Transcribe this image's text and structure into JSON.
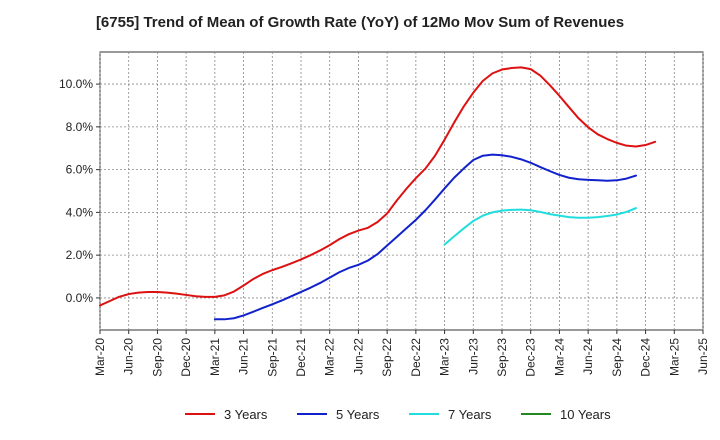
{
  "chart_data": {
    "type": "line",
    "title": "[6755]  Trend of Mean of Growth Rate (YoY) of 12Mo Mov Sum of Revenues",
    "xlabel": "",
    "ylabel": "",
    "ylim": [
      -1.5,
      11.5
    ],
    "y_ticks": [
      0,
      2,
      4,
      6,
      8,
      10
    ],
    "y_tick_labels": [
      "0.0%",
      "2.0%",
      "4.0%",
      "6.0%",
      "8.0%",
      "10.0%"
    ],
    "x_ticks": [
      "Mar-20",
      "Jun-20",
      "Sep-20",
      "Dec-20",
      "Mar-21",
      "Jun-21",
      "Sep-21",
      "Dec-21",
      "Mar-22",
      "Jun-22",
      "Sep-22",
      "Dec-22",
      "Mar-23",
      "Jun-23",
      "Sep-23",
      "Dec-23",
      "Mar-24",
      "Jun-24",
      "Sep-24",
      "Dec-24",
      "Mar-25",
      "Jun-25"
    ],
    "grid": true,
    "legend_position": "bottom",
    "series": [
      {
        "name": "3 Years",
        "color": "#dd1111",
        "start_index": 0,
        "values": [
          -0.35,
          -0.15,
          0.05,
          0.18,
          0.25,
          0.28,
          0.28,
          0.25,
          0.2,
          0.14,
          0.08,
          0.05,
          0.05,
          0.12,
          0.3,
          0.58,
          0.88,
          1.12,
          1.3,
          1.45,
          1.62,
          1.8,
          2.0,
          2.22,
          2.47,
          2.75,
          2.98,
          3.15,
          3.28,
          3.55,
          3.95,
          4.55,
          5.1,
          5.6,
          6.05,
          6.65,
          7.4,
          8.2,
          8.95,
          9.6,
          10.15,
          10.5,
          10.68,
          10.75,
          10.78,
          10.7,
          10.4,
          9.95,
          9.45,
          8.92,
          8.4,
          7.98,
          7.65,
          7.43,
          7.25,
          7.12,
          7.08,
          7.15,
          7.3
        ]
      },
      {
        "name": "5 Years",
        "color": "#1122cc",
        "start_index": 12,
        "values": [
          -1.0,
          -1.0,
          -0.95,
          -0.82,
          -0.65,
          -0.47,
          -0.3,
          -0.12,
          0.08,
          0.28,
          0.48,
          0.7,
          0.95,
          1.2,
          1.4,
          1.55,
          1.75,
          2.05,
          2.45,
          2.85,
          3.25,
          3.65,
          4.1,
          4.6,
          5.12,
          5.62,
          6.05,
          6.45,
          6.65,
          6.7,
          6.67,
          6.6,
          6.48,
          6.32,
          6.12,
          5.93,
          5.75,
          5.62,
          5.55,
          5.52,
          5.5,
          5.48,
          5.5,
          5.58,
          5.72
        ]
      },
      {
        "name": "7 Years",
        "color": "#22dddd",
        "start_index": 36,
        "values": [
          2.5,
          2.88,
          3.25,
          3.6,
          3.85,
          4.0,
          4.08,
          4.12,
          4.13,
          4.1,
          4.02,
          3.92,
          3.85,
          3.78,
          3.75,
          3.75,
          3.78,
          3.83,
          3.9,
          4.02,
          4.2
        ]
      },
      {
        "name": "10 Years",
        "color": "#228822",
        "start_index": 0,
        "values": []
      }
    ]
  }
}
